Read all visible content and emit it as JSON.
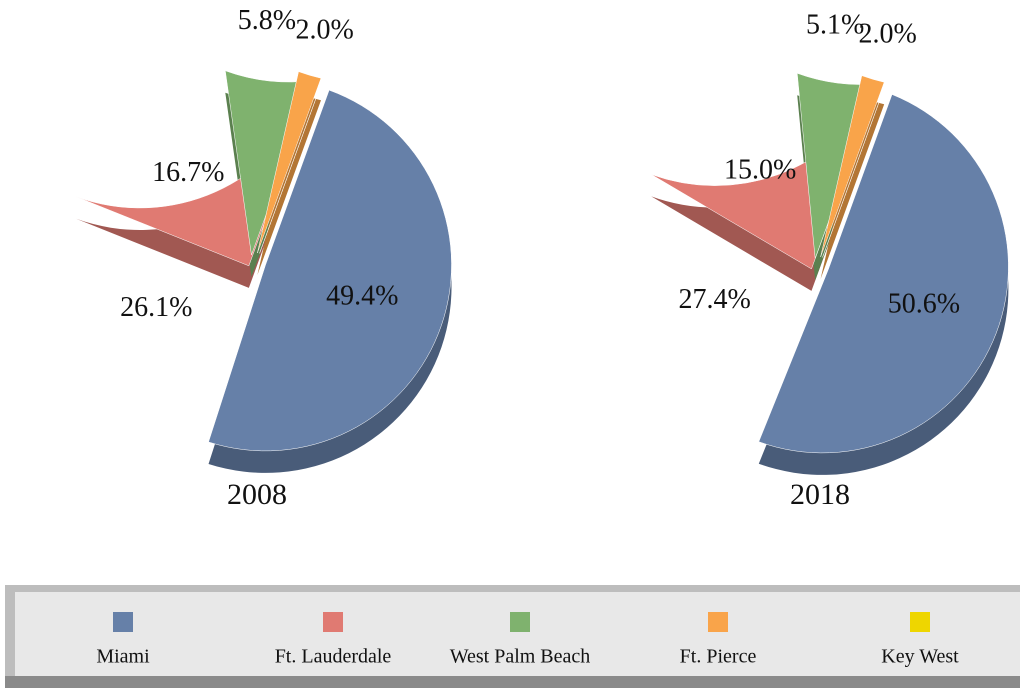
{
  "chart_data": [
    {
      "type": "pie",
      "title": "2008",
      "categories": [
        "Miami",
        "Ft. Lauderdale",
        "West Palm Beach",
        "Ft. Pierce",
        "Key West"
      ],
      "values": [
        49.4,
        26.1,
        16.7,
        5.8,
        2.0
      ],
      "value_labels": [
        "49.4%",
        "26.1%",
        "16.7%",
        "5.8%",
        "2.0%"
      ],
      "colors": [
        "#6680a8",
        "#e07a72",
        "#7fb26e",
        "#f9a44a",
        "#eed600"
      ]
    },
    {
      "type": "pie",
      "title": "2018",
      "categories": [
        "Miami",
        "Ft. Lauderdale",
        "West Palm Beach",
        "Ft. Pierce",
        "Key West"
      ],
      "values": [
        50.6,
        27.4,
        15.0,
        5.1,
        2.0
      ],
      "value_labels": [
        "50.6%",
        "27.4%",
        "15.0%",
        "5.1%",
        "2.0%"
      ],
      "colors": [
        "#6680a8",
        "#e07a72",
        "#7fb26e",
        "#f9a44a",
        "#eed600"
      ]
    }
  ]
}
